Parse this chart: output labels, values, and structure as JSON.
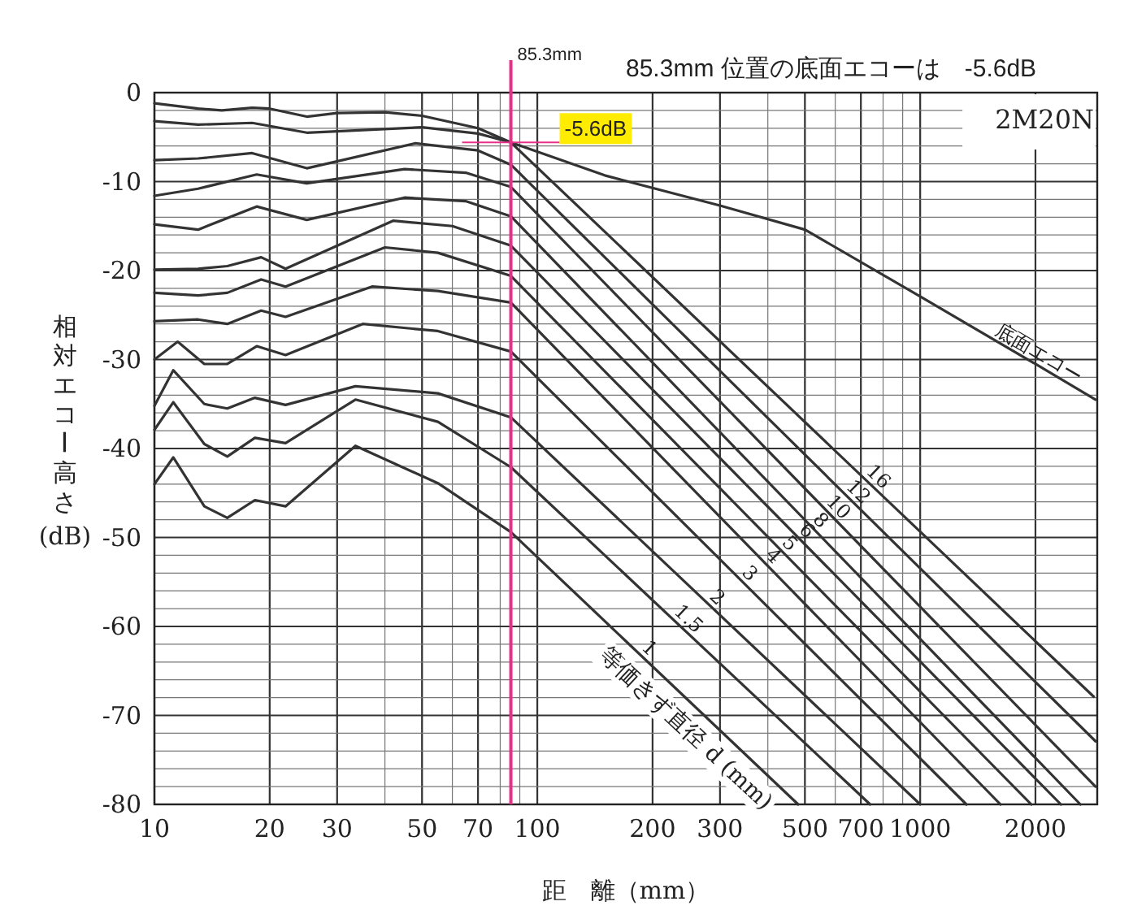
{
  "chart_data": {
    "type": "line",
    "title": "85.3mm 位置の底面エコーは　-5.6dB",
    "xlabel": "距　離（mm）",
    "ylabel": "相対エコー高さ(dB)",
    "log": "x",
    "xlim": [
      10,
      2900
    ],
    "ylim": [
      -80,
      0
    ],
    "xticks": [
      10,
      20,
      30,
      50,
      70,
      100,
      200,
      300,
      500,
      700,
      1000,
      2000
    ],
    "yticks": [
      0,
      -10,
      -20,
      -30,
      -40,
      -50,
      -60,
      -70,
      -80
    ],
    "grid": true,
    "legend": false,
    "marker": "none",
    "line_style": "solid",
    "ref_lines": [
      {
        "axis": "x",
        "value": 85.3,
        "label": "85.3mm",
        "color": "#e8308a"
      }
    ],
    "annotations": [
      "2M20N",
      {
        "text": "-5.6dB",
        "x": 85.3,
        "y": -5.6
      },
      "等価きず直径 d (mm)"
    ],
    "series": [
      {
        "name": "底面エコー",
        "color": "#333333",
        "x": [
          10,
          13,
          15,
          18,
          20,
          25,
          30,
          40,
          50,
          70,
          85.3,
          150,
          300,
          500,
          1000,
          2000,
          2870
        ],
        "values": [
          -1.2,
          -1.8,
          -2,
          -1.7,
          -1.8,
          -2.7,
          -2.3,
          -2.2,
          -2.6,
          -4,
          -5.6,
          -9.3,
          -12.7,
          -15.4,
          -22.9,
          -30.5,
          -34.5
        ]
      },
      {
        "name": "16",
        "color": "#333333",
        "x": [
          10,
          13,
          18,
          25,
          50,
          70,
          85.3,
          2840
        ],
        "values": [
          -3.2,
          -3.6,
          -3.4,
          -4.5,
          -3.9,
          -4.6,
          -5.6,
          -67.9
        ]
      },
      {
        "name": "12",
        "color": "#333333",
        "x": [
          10,
          13,
          18,
          25,
          48,
          70,
          85.3,
          2870
        ],
        "values": [
          -7.6,
          -7.4,
          -6.8,
          -8.5,
          -5.7,
          -6.5,
          -8.1,
          -72.9
        ]
      },
      {
        "name": "10",
        "color": "#333333",
        "x": [
          10,
          13,
          18.5,
          25,
          45,
          65,
          85.3,
          2870
        ],
        "values": [
          -11.6,
          -10.8,
          -9.2,
          -10.2,
          -8.6,
          -9,
          -10.6,
          -78
        ]
      },
      {
        "name": "8",
        "color": "#333333",
        "x": [
          10,
          13,
          18.5,
          25,
          45,
          65,
          85.3,
          2620
        ],
        "values": [
          -14.8,
          -15.4,
          -12.8,
          -14.3,
          -11.8,
          -12.2,
          -13.9,
          -80
        ]
      },
      {
        "name": "6",
        "color": "#333333",
        "x": [
          10,
          13,
          15.5,
          19,
          22,
          42,
          60,
          85.3,
          2330
        ],
        "values": [
          -19.9,
          -19.8,
          -19.5,
          -18.5,
          -19.8,
          -14.4,
          -15,
          -17.2,
          -80
        ]
      },
      {
        "name": "5",
        "color": "#333333",
        "x": [
          10,
          13,
          15.5,
          19,
          22,
          40,
          55,
          85.3,
          1950
        ],
        "values": [
          -22.5,
          -22.8,
          -22.5,
          -21,
          -21.8,
          -17.4,
          -18,
          -20.6,
          -80
        ]
      },
      {
        "name": "4",
        "color": "#333333",
        "x": [
          10,
          13,
          15.5,
          19,
          22,
          37,
          55,
          85.3,
          1620
        ],
        "values": [
          -25.7,
          -25.5,
          -26,
          -24.5,
          -25.2,
          -21.8,
          -22.3,
          -23.6,
          -80
        ]
      },
      {
        "name": "3",
        "color": "#333333",
        "x": [
          10,
          11.5,
          13.5,
          15.5,
          18.5,
          22,
          35,
          55,
          85.3,
          1320
        ],
        "values": [
          -30,
          -28,
          -30.5,
          -30.5,
          -28.5,
          -29.5,
          -26,
          -26.8,
          -29.1,
          -80
        ]
      },
      {
        "name": "2",
        "color": "#333333",
        "x": [
          10,
          11.2,
          13.5,
          15.5,
          18.3,
          22,
          33.5,
          55,
          85.3,
          1000
        ],
        "values": [
          -35.2,
          -31.2,
          -35,
          -35.5,
          -34.3,
          -35.1,
          -33,
          -33.8,
          -36.5,
          -80
        ]
      },
      {
        "name": "1.5",
        "color": "#333333",
        "x": [
          10,
          11.2,
          13.5,
          15.5,
          18.3,
          22,
          33.5,
          55,
          85.3,
          740
        ],
        "values": [
          -37.9,
          -34.8,
          -39.5,
          -40.9,
          -38.8,
          -39.4,
          -34.5,
          -37,
          -42.1,
          -80
        ]
      },
      {
        "name": "1",
        "color": "#333333",
        "x": [
          10,
          11.2,
          13.5,
          15.5,
          18.3,
          22,
          33.5,
          55,
          85.3,
          480
        ],
        "values": [
          -44,
          -41,
          -46.5,
          -47.8,
          -45.8,
          -46.5,
          -39.7,
          -43.9,
          -49.4,
          -80
        ]
      }
    ]
  }
}
